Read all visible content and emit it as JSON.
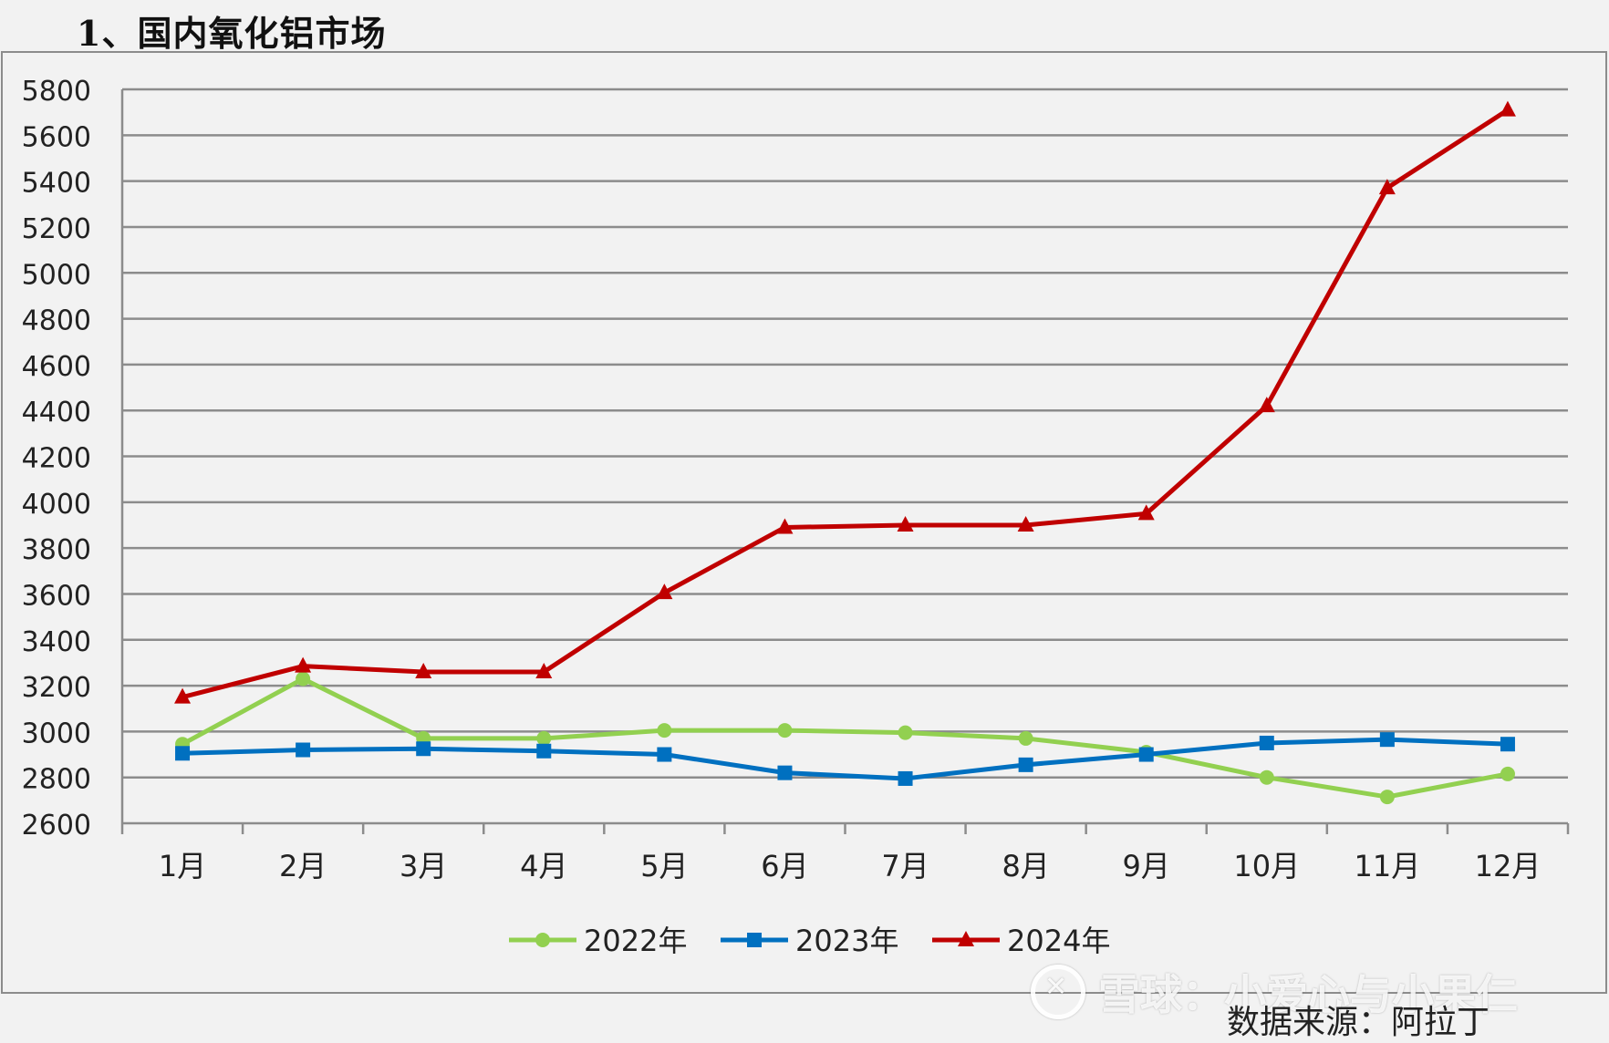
{
  "page": {
    "title": "1、国内氧化铝市场",
    "source": "数据来源：阿拉丁"
  },
  "watermark": {
    "text": "雪球：小爱心与小果仁"
  },
  "chart_data": {
    "type": "line",
    "categories": [
      "1月",
      "2月",
      "3月",
      "4月",
      "5月",
      "6月",
      "7月",
      "8月",
      "9月",
      "10月",
      "11月",
      "12月"
    ],
    "ylim": [
      2600,
      5800
    ],
    "yticks": [
      "2600",
      "2800",
      "3000",
      "3200",
      "3400",
      "3600",
      "3800",
      "4000",
      "4200",
      "4400",
      "4600",
      "4800",
      "5000",
      "5200",
      "5400",
      "5600",
      "5800"
    ],
    "grid": true,
    "legend_position": "bottom",
    "series": [
      {
        "name": "2022年",
        "color": "#92d050",
        "marker": "circle",
        "values": [
          2945,
          3230,
          2970,
          2970,
          3005,
          3005,
          2995,
          2970,
          2910,
          2800,
          2715,
          2815
        ]
      },
      {
        "name": "2023年",
        "color": "#0070c0",
        "marker": "square",
        "values": [
          2905,
          2920,
          2925,
          2915,
          2900,
          2820,
          2795,
          2855,
          2900,
          2950,
          2965,
          2945
        ]
      },
      {
        "name": "2024年",
        "color": "#c00000",
        "marker": "triangle",
        "values": [
          3150,
          3285,
          3260,
          3260,
          3605,
          3890,
          3900,
          3900,
          3950,
          4420,
          5370,
          5710
        ]
      }
    ]
  }
}
